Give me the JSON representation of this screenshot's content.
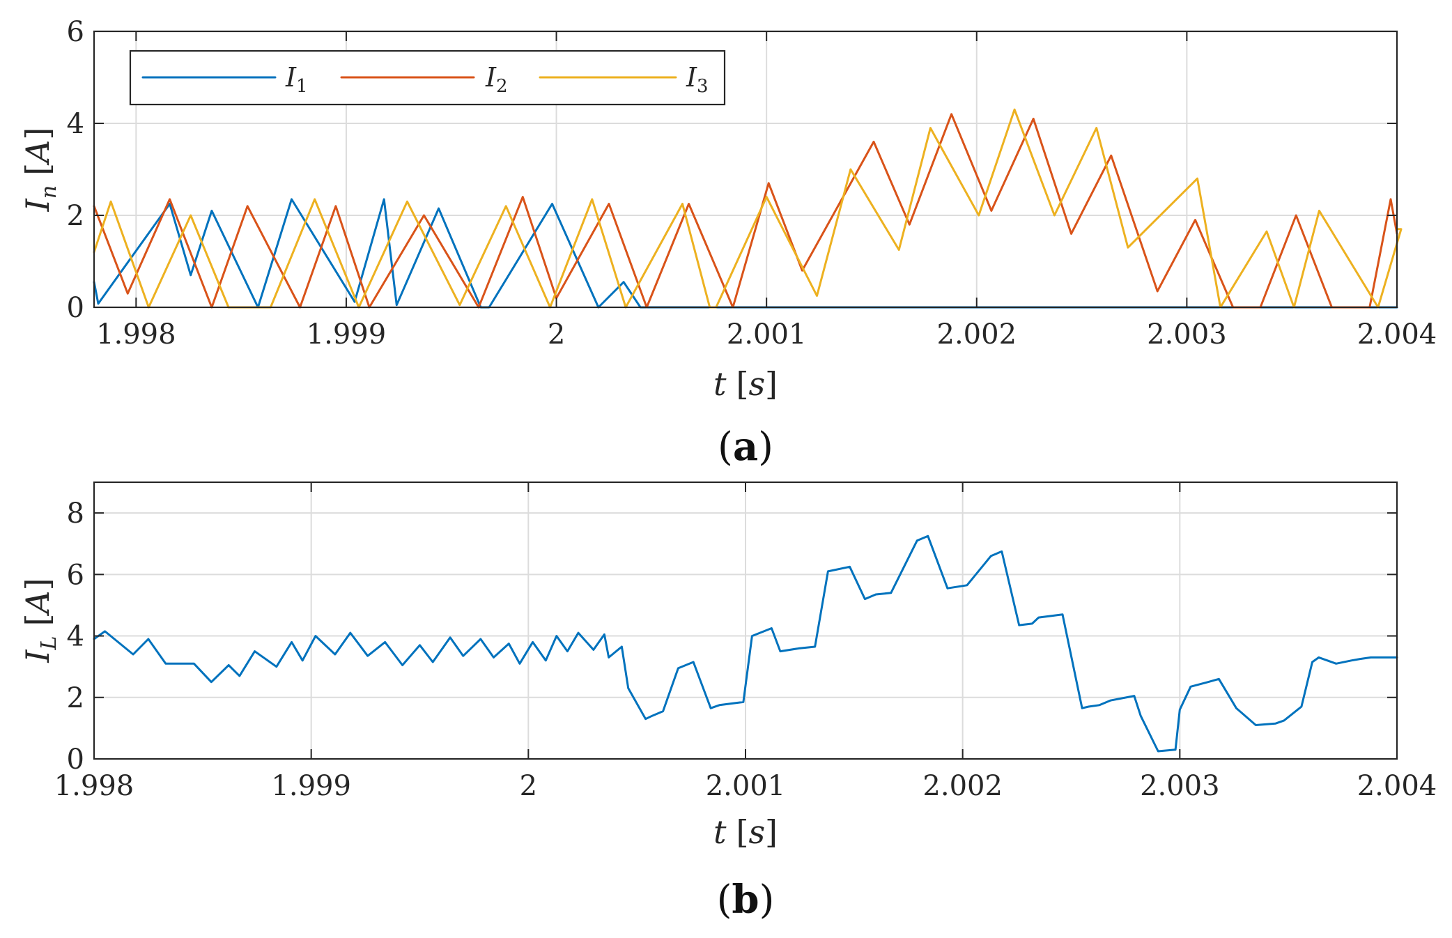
{
  "colors": {
    "I1": "#0072BD",
    "I2": "#D95319",
    "I3": "#EDB120",
    "axis": "#262626",
    "grid": "#dcdcdc"
  },
  "chart_data": [
    {
      "id": "a",
      "type": "line",
      "panel_label": "a",
      "xlabel_var": "t",
      "xlabel_unit": "s",
      "ylabel_var": "I",
      "ylabel_sub": "n",
      "ylabel_unit": "A",
      "xlim": [
        1.9978,
        2.004
      ],
      "ylim": [
        0,
        6
      ],
      "grid": true,
      "legend_position": "top-left",
      "x_ticks": [
        1.998,
        1.999,
        2.0,
        2.001,
        2.002,
        2.003,
        2.004
      ],
      "x_tick_labels": [
        "1.998",
        "1.999",
        "2",
        "2.001",
        "2.002",
        "2.003",
        "2.004"
      ],
      "y_ticks": [
        0,
        2,
        4,
        6
      ],
      "y_tick_labels": [
        "0",
        "2",
        "4",
        "6"
      ],
      "series": [
        {
          "name": "I1",
          "label_var": "I",
          "label_sub": "1",
          "x": [
            1.9978,
            1.99782,
            1.99816,
            1.99826,
            1.99836,
            1.99858,
            1.99874,
            1.99904,
            1.99918,
            1.99924,
            1.99944,
            1.99964,
            1.99968,
            1.99998,
            2.0002,
            2.00032,
            2.0004,
            2.00041,
            2.00042,
            2.004
          ],
          "y": [
            0.55,
            0.08,
            2.25,
            0.7,
            2.1,
            0.0,
            2.35,
            0.12,
            2.35,
            0.05,
            2.15,
            0.0,
            0.0,
            2.25,
            0.0,
            0.55,
            0.0,
            0.0,
            0.0,
            0.0
          ]
        },
        {
          "name": "I2",
          "label_var": "I",
          "label_sub": "2",
          "x": [
            1.9978,
            1.99796,
            1.99816,
            1.99836,
            1.99853,
            1.99878,
            1.99895,
            1.99911,
            1.99937,
            1.99963,
            1.99984,
            2.0,
            2.00025,
            2.00043,
            2.00063,
            2.00084,
            2.00101,
            2.00117,
            2.00151,
            2.00168,
            2.00188,
            2.00207,
            2.00227,
            2.00245,
            2.00264,
            2.00286,
            2.00304,
            2.00322,
            2.00335,
            2.00352,
            2.00369,
            2.00387,
            2.00397,
            2.004
          ],
          "y": [
            2.2,
            0.3,
            2.35,
            0.0,
            2.2,
            0.0,
            2.2,
            0.0,
            2.0,
            0.0,
            2.4,
            0.2,
            2.25,
            0.0,
            2.25,
            0.0,
            2.7,
            0.8,
            3.6,
            1.8,
            4.2,
            2.1,
            4.1,
            1.6,
            3.3,
            0.35,
            1.9,
            0.0,
            0.0,
            2.0,
            0.0,
            0.0,
            2.35,
            1.6
          ]
        },
        {
          "name": "I3",
          "label_var": "I",
          "label_sub": "3",
          "x": [
            1.9978,
            1.99788,
            1.99806,
            1.99826,
            1.99844,
            1.99864,
            1.99885,
            1.99906,
            1.99929,
            1.99954,
            1.99976,
            1.99997,
            2.00017,
            2.00033,
            2.0006,
            2.00073,
            2.00076,
            2.001,
            2.00124,
            2.0014,
            2.00163,
            2.00178,
            2.00201,
            2.00218,
            2.00237,
            2.00257,
            2.00272,
            2.00305,
            2.00316,
            2.00338,
            2.00351,
            2.00363,
            2.00391,
            2.00402,
            2.004
          ],
          "y": [
            1.2,
            2.3,
            0.0,
            2.0,
            0.0,
            0.0,
            2.35,
            0.0,
            2.3,
            0.05,
            2.2,
            0.0,
            2.35,
            0.0,
            2.25,
            0.0,
            0.0,
            2.4,
            0.25,
            3.0,
            1.25,
            3.9,
            2.0,
            4.3,
            2.0,
            3.9,
            1.3,
            2.8,
            0.0,
            1.65,
            0.0,
            2.1,
            0.0,
            1.7,
            1.7
          ]
        }
      ]
    },
    {
      "id": "b",
      "type": "line",
      "panel_label": "b",
      "xlabel_var": "t",
      "xlabel_unit": "s",
      "ylabel_var": "I",
      "ylabel_sub": "L",
      "ylabel_unit": "A",
      "xlim": [
        1.998,
        2.004
      ],
      "ylim": [
        0,
        9
      ],
      "grid": true,
      "x_ticks": [
        1.998,
        1.999,
        2.0,
        2.001,
        2.002,
        2.003,
        2.004
      ],
      "x_tick_labels": [
        "1.998",
        "1.999",
        "2",
        "2.001",
        "2.002",
        "2.003",
        "2.004"
      ],
      "y_ticks": [
        0,
        2,
        4,
        6,
        8
      ],
      "y_tick_labels": [
        "0",
        "2",
        "4",
        "6",
        "8"
      ],
      "series": [
        {
          "name": "IL",
          "x": [
            1.998,
            1.99805,
            1.99818,
            1.99825,
            1.99833,
            1.99846,
            1.99854,
            1.99862,
            1.99867,
            1.99874,
            1.99884,
            1.99891,
            1.99896,
            1.99902,
            1.99911,
            1.99918,
            1.99926,
            1.99934,
            1.99942,
            1.9995,
            1.99956,
            1.99964,
            1.9997,
            1.99978,
            1.99984,
            1.99991,
            1.99996,
            2.00002,
            2.00008,
            2.00013,
            2.00018,
            2.00023,
            2.0003,
            2.00035,
            2.00037,
            2.00043,
            2.00046,
            2.00054,
            2.00057,
            2.00062,
            2.00069,
            2.00076,
            2.00084,
            2.00088,
            2.00099,
            2.00103,
            2.00112,
            2.00116,
            2.00125,
            2.00132,
            2.00138,
            2.00148,
            2.00155,
            2.0016,
            2.00167,
            2.00179,
            2.00184,
            2.00193,
            2.00202,
            2.00213,
            2.00218,
            2.00226,
            2.00232,
            2.00235,
            2.00246,
            2.00255,
            2.00258,
            2.00263,
            2.00268,
            2.00279,
            2.00282,
            2.0029,
            2.00298,
            2.003,
            2.00305,
            2.00313,
            2.00318,
            2.00326,
            2.00335,
            2.00344,
            2.00348,
            2.00356,
            2.00361,
            2.00364,
            2.00372,
            2.00379,
            2.00383,
            2.00388,
            2.00394,
            2.004
          ],
          "y": [
            3.9,
            4.15,
            3.4,
            3.9,
            3.1,
            3.1,
            2.5,
            3.05,
            2.7,
            3.5,
            3.0,
            3.8,
            3.2,
            4.0,
            3.4,
            4.1,
            3.35,
            3.8,
            3.05,
            3.7,
            3.15,
            3.95,
            3.35,
            3.9,
            3.3,
            3.75,
            3.1,
            3.8,
            3.2,
            4.0,
            3.5,
            4.1,
            3.55,
            4.05,
            3.3,
            3.65,
            2.3,
            1.3,
            1.4,
            1.55,
            2.95,
            3.15,
            1.65,
            1.75,
            1.85,
            4.0,
            4.25,
            3.5,
            3.6,
            3.65,
            6.1,
            6.25,
            5.2,
            5.35,
            5.4,
            7.1,
            7.25,
            5.55,
            5.65,
            6.6,
            6.75,
            4.35,
            4.4,
            4.6,
            4.7,
            1.65,
            1.7,
            1.75,
            1.9,
            2.05,
            1.4,
            0.25,
            0.3,
            1.6,
            2.35,
            2.5,
            2.6,
            1.65,
            1.1,
            1.15,
            1.25,
            1.7,
            3.15,
            3.3,
            3.1,
            3.2,
            3.25,
            3.3,
            3.3,
            3.3
          ]
        }
      ]
    }
  ]
}
